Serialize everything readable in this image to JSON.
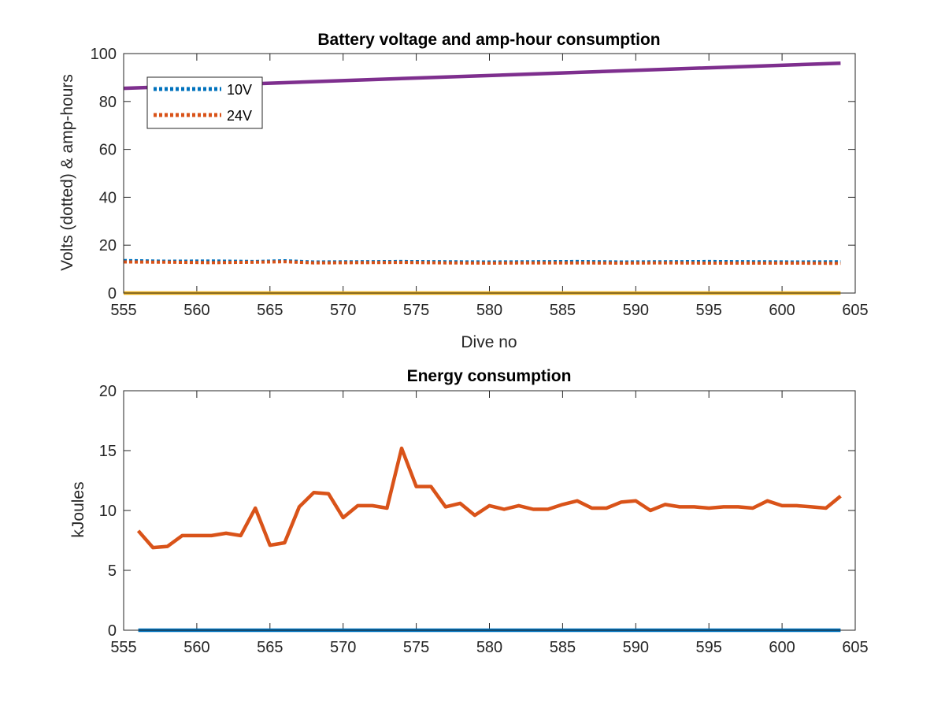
{
  "colors": {
    "blue": "#0072BD",
    "orange": "#D95319",
    "yellow": "#EDB120",
    "purple": "#7E2F8E",
    "axis": "#262626"
  },
  "chart_data": [
    {
      "type": "line",
      "title": "Battery voltage and amp-hour consumption",
      "xlabel": "Dive no",
      "ylabel": "Volts (dotted) & amp-hours",
      "xlim": [
        555,
        605
      ],
      "ylim": [
        0,
        100
      ],
      "xticks": [
        "555",
        "560",
        "565",
        "570",
        "575",
        "580",
        "585",
        "590",
        "595",
        "600",
        "605"
      ],
      "yticks": [
        "0",
        "20",
        "40",
        "60",
        "80",
        "100"
      ],
      "grid": false,
      "legend": {
        "placement": "top-left",
        "entries": [
          "10V",
          "24V"
        ]
      },
      "series": [
        {
          "name": "10V",
          "color": "blue",
          "style": "dotted",
          "x": [
            555,
            558,
            561,
            564,
            566,
            568,
            571,
            574,
            577,
            580,
            583,
            586,
            589,
            592,
            595,
            598,
            601,
            604
          ],
          "y": [
            13.6,
            13.3,
            13.4,
            13.2,
            13.5,
            13.0,
            13.1,
            13.2,
            13.1,
            13.0,
            13.1,
            13.2,
            13.0,
            13.1,
            13.2,
            13.1,
            13.0,
            13.1
          ]
        },
        {
          "name": "24V",
          "color": "orange",
          "style": "dotted",
          "x": [
            555,
            558,
            561,
            564,
            566,
            568,
            571,
            574,
            577,
            580,
            583,
            586,
            589,
            592,
            595,
            598,
            601,
            604
          ],
          "y": [
            13.0,
            12.9,
            12.7,
            12.9,
            13.1,
            12.6,
            12.7,
            12.8,
            12.6,
            12.5,
            12.6,
            12.6,
            12.5,
            12.6,
            12.5,
            12.5,
            12.5,
            12.4
          ]
        },
        {
          "color": "yellow",
          "style": "solid",
          "x": [
            555,
            604
          ],
          "y": [
            0,
            0
          ]
        },
        {
          "color": "purple",
          "style": "solid",
          "x": [
            555,
            604
          ],
          "y": [
            85.5,
            96
          ]
        }
      ]
    },
    {
      "type": "line",
      "title": "Energy consumption",
      "xlabel": "",
      "ylabel": "kJoules",
      "xlim": [
        555,
        605
      ],
      "ylim": [
        0,
        20
      ],
      "xticks": [
        "555",
        "560",
        "565",
        "570",
        "575",
        "580",
        "585",
        "590",
        "595",
        "600",
        "605"
      ],
      "yticks": [
        "0",
        "5",
        "10",
        "15",
        "20"
      ],
      "grid": false,
      "series": [
        {
          "color": "orange",
          "style": "solid",
          "x": [
            556,
            557,
            558,
            559,
            560,
            561,
            562,
            563,
            564,
            565,
            566,
            567,
            568,
            569,
            570,
            571,
            572,
            573,
            574,
            575,
            576,
            577,
            578,
            579,
            580,
            581,
            582,
            583,
            584,
            585,
            586,
            587,
            588,
            589,
            590,
            591,
            592,
            593,
            594,
            595,
            596,
            597,
            598,
            599,
            600,
            601,
            602,
            603,
            604
          ],
          "y": [
            8.3,
            6.9,
            7.0,
            7.9,
            7.9,
            7.9,
            8.1,
            7.9,
            10.2,
            7.1,
            7.3,
            10.3,
            11.5,
            11.4,
            9.4,
            10.4,
            10.4,
            10.2,
            15.2,
            12.0,
            12.0,
            10.3,
            10.6,
            9.6,
            10.4,
            10.1,
            10.4,
            10.1,
            10.1,
            10.5,
            10.8,
            10.2,
            10.2,
            10.7,
            10.8,
            10.0,
            10.5,
            10.3,
            10.3,
            10.2,
            10.3,
            10.3,
            10.2,
            10.8,
            10.4,
            10.4,
            10.3,
            10.2,
            11.2
          ]
        },
        {
          "color": "blue",
          "style": "solid",
          "x": [
            556,
            604
          ],
          "y": [
            0,
            0
          ]
        }
      ]
    }
  ]
}
